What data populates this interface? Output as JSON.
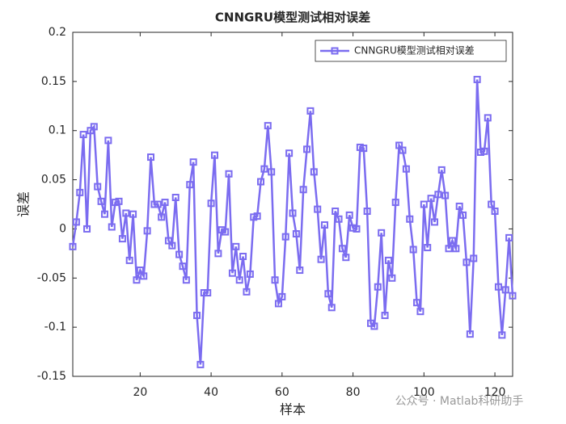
{
  "chart_data": {
    "type": "line",
    "title": "CNNGRU模型测试相对误差",
    "xlabel": "样本",
    "ylabel": "误差",
    "watermark": "公众号 · Matlab科研助手",
    "legend": "upper right",
    "x": [
      1,
      2,
      3,
      4,
      5,
      6,
      7,
      8,
      9,
      10,
      11,
      12,
      13,
      14,
      15,
      16,
      17,
      18,
      19,
      20,
      21,
      22,
      23,
      24,
      25,
      26,
      27,
      28,
      29,
      30,
      31,
      32,
      33,
      34,
      35,
      36,
      37,
      38,
      39,
      40,
      41,
      42,
      43,
      44,
      45,
      46,
      47,
      48,
      49,
      50,
      51,
      52,
      53,
      54,
      55,
      56,
      57,
      58,
      59,
      60,
      61,
      62,
      63,
      64,
      65,
      66,
      67,
      68,
      69,
      70,
      71,
      72,
      73,
      74,
      75,
      76,
      77,
      78,
      79,
      80,
      81,
      82,
      83,
      84,
      85,
      86,
      87,
      88,
      89,
      90,
      91,
      92,
      93,
      94,
      95,
      96,
      97,
      98,
      99,
      100,
      101,
      102,
      103,
      104,
      105,
      106,
      107,
      108,
      109,
      110,
      111,
      112,
      113,
      114,
      115,
      116,
      117,
      118,
      119,
      120,
      121,
      122,
      123,
      124,
      125
    ],
    "series": [
      {
        "name": "CNNGRU模型测试相对误差",
        "color": "#7b6cf0",
        "values": [
          -0.018,
          0.007,
          0.037,
          0.096,
          0.0,
          0.1,
          0.104,
          0.043,
          0.028,
          0.015,
          0.09,
          0.002,
          0.027,
          0.028,
          -0.01,
          0.016,
          -0.032,
          0.015,
          -0.052,
          -0.042,
          -0.048,
          -0.002,
          0.073,
          0.025,
          0.025,
          0.012,
          0.027,
          -0.012,
          -0.017,
          0.032,
          -0.026,
          -0.038,
          -0.052,
          0.045,
          0.068,
          -0.088,
          -0.138,
          -0.065,
          -0.065,
          0.026,
          0.075,
          -0.025,
          -0.001,
          -0.003,
          0.056,
          -0.045,
          -0.018,
          -0.052,
          -0.028,
          -0.064,
          -0.046,
          0.012,
          0.013,
          0.048,
          0.061,
          0.105,
          0.058,
          -0.052,
          -0.076,
          -0.069,
          -0.008,
          0.077,
          0.016,
          -0.005,
          -0.042,
          0.04,
          0.081,
          0.12,
          0.058,
          0.02,
          -0.031,
          0.004,
          -0.066,
          -0.08,
          0.018,
          0.01,
          -0.02,
          -0.029,
          0.014,
          0.001,
          0.0,
          0.083,
          0.082,
          0.018,
          -0.096,
          -0.099,
          -0.059,
          -0.004,
          -0.088,
          -0.032,
          -0.05,
          0.027,
          0.085,
          0.08,
          0.061,
          0.01,
          -0.021,
          -0.075,
          -0.084,
          0.025,
          -0.019,
          0.031,
          0.007,
          0.035,
          0.06,
          0.034,
          -0.02,
          -0.012,
          -0.02,
          0.023,
          0.014,
          -0.034,
          -0.107,
          -0.03,
          0.152,
          0.078,
          0.079,
          0.113,
          0.025,
          0.018,
          -0.059,
          -0.108,
          -0.062,
          -0.009,
          -0.068
        ]
      }
    ],
    "xlim": [
      1,
      125
    ],
    "xticks": [
      20,
      40,
      60,
      80,
      100,
      120
    ],
    "ylim": [
      -0.15,
      0.2
    ],
    "yticks": [
      -0.15,
      -0.1,
      -0.05,
      0,
      0.05,
      0.1,
      0.15,
      0.2
    ],
    "grid": false
  }
}
